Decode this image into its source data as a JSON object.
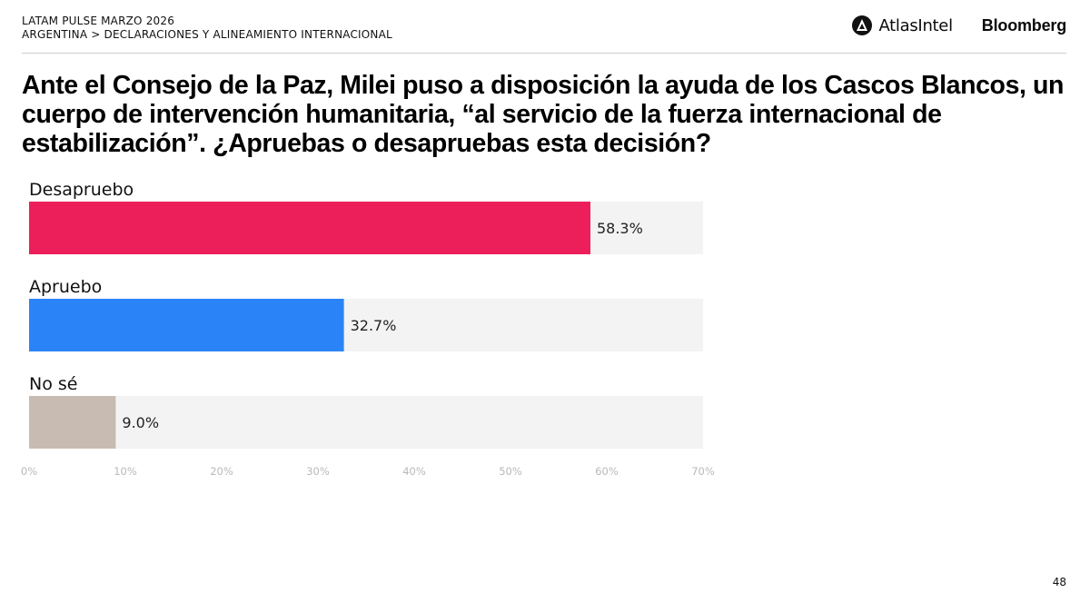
{
  "header": {
    "survey": "LATAM PULSE MARZO 2026",
    "section": "ARGENTINA > DECLARACIONES Y ALINEAMIENTO INTERNACIONAL"
  },
  "logos": {
    "atlas": "AtlasIntel",
    "bloomberg": "Bloomberg"
  },
  "question": "Ante el Consejo de la Paz, Milei puso a disposición la ayuda de los Cascos Blancos, un cuerpo de intervención humanitaria, “al servicio de la fuerza internacional de estabilización”. ¿Apruebas o desapruebas esta decisión?",
  "chart_data": {
    "type": "bar",
    "orientation": "horizontal",
    "categories": [
      "Desapruebo",
      "Apruebo",
      "No sé"
    ],
    "values": [
      58.3,
      32.7,
      9.0
    ],
    "value_labels": [
      "58.3%",
      "32.7%",
      "9.0%"
    ],
    "colors": [
      "#ec1f5a",
      "#2b84f7",
      "#c8bbb1"
    ],
    "track_color": "#f3f3f3",
    "xlim": [
      0,
      70
    ],
    "ticks": [
      0,
      10,
      20,
      30,
      40,
      50,
      60,
      70
    ],
    "tick_labels": [
      "0%",
      "10%",
      "20%",
      "30%",
      "40%",
      "50%",
      "60%",
      "70%"
    ],
    "grid": false,
    "legend": "none"
  },
  "page_number": "48"
}
